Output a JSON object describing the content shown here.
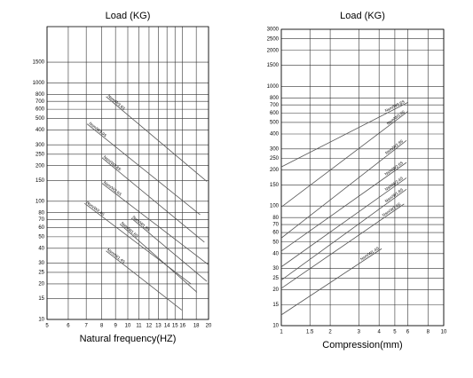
{
  "chart_data": [
    {
      "type": "line",
      "title": "Load (KG)",
      "x_label": "Natural frequency(HZ)",
      "xscale": "log",
      "yscale": "log",
      "grid": true,
      "xlim": [
        5,
        20
      ],
      "xticks": [
        5,
        6,
        7,
        8,
        9,
        10,
        11,
        12,
        13,
        14,
        15,
        16,
        18,
        20
      ],
      "ylim": [
        10,
        3000
      ],
      "yticks": [
        10,
        15,
        20,
        25,
        30,
        40,
        50,
        60,
        70,
        80,
        100,
        150,
        200,
        250,
        300,
        400,
        500,
        600,
        700,
        800,
        1000,
        1500
      ],
      "series": [
        {
          "name": "Nsm/W3.6S",
          "color": "#555555",
          "x": [
            8.3,
            19.7
          ],
          "values": [
            767,
            147
          ]
        },
        {
          "name": "Nsm/W3.9S",
          "color": "#555555",
          "x": [
            7.05,
            18.6
          ],
          "values": [
            451,
            77
          ]
        },
        {
          "name": "Nsm/W2.8S",
          "color": "#555555",
          "x": [
            8.0,
            19.3
          ],
          "values": [
            234,
            45
          ]
        },
        {
          "name": "Nsm/W2.6S",
          "color": "#555555",
          "x": [
            8.0,
            20
          ],
          "values": [
            142,
            29
          ]
        },
        {
          "name": "Nsm/W2.4S",
          "color": "#555555",
          "x": [
            6.9,
            17.2
          ],
          "values": [
            96,
            20
          ]
        },
        {
          "name": "Nsm/W1.8S",
          "color": "#555555",
          "x": [
            10.3,
            19.7
          ],
          "values": [
            72,
            21
          ]
        },
        {
          "name": "Nsm/W1.6S",
          "color": "#555555",
          "x": [
            9.35,
            18.1
          ],
          "values": [
            64,
            17
          ]
        },
        {
          "name": "Nsm/W1.4S",
          "color": "#555555",
          "x": [
            8.3,
            15.9
          ],
          "values": [
            38,
            12
          ]
        }
      ]
    },
    {
      "type": "line",
      "title": "Load (KG)",
      "x_label": "Compression(mm)",
      "xscale": "log",
      "yscale": "log",
      "grid": true,
      "xlim": [
        1,
        10
      ],
      "xticks": [
        1,
        1.5,
        2,
        3,
        4,
        5,
        6,
        8,
        10
      ],
      "ylim": [
        10,
        3000
      ],
      "yticks": [
        10,
        15,
        20,
        25,
        30,
        40,
        50,
        60,
        70,
        80,
        100,
        150,
        200,
        250,
        300,
        400,
        500,
        600,
        700,
        800,
        1000,
        1500,
        2000,
        2500,
        3000
      ],
      "series": [
        {
          "name": "Nsm/W3.6S",
          "color": "#555555",
          "x": [
            1,
            6.04
          ],
          "values": [
            212,
            736
          ]
        },
        {
          "name": "Nsm/W3.9S",
          "color": "#555555",
          "x": [
            1,
            6.04
          ],
          "values": [
            98,
            620
          ]
        },
        {
          "name": "Nsm/W2.8S",
          "color": "#555555",
          "x": [
            1,
            5.9
          ],
          "values": [
            54,
            353
          ]
        },
        {
          "name": "Nsm/W2.6S",
          "color": "#555555",
          "x": [
            1,
            5.9
          ],
          "values": [
            42,
            231
          ]
        },
        {
          "name": "Nsm/W2.4S",
          "color": "#555555",
          "x": [
            1,
            5.9
          ],
          "values": [
            31,
            172
          ]
        },
        {
          "name": "Nsm/W1.8S",
          "color": "#555555",
          "x": [
            1,
            5.9
          ],
          "values": [
            24,
            138
          ]
        },
        {
          "name": "Nsm/W1.6S",
          "color": "#555555",
          "x": [
            1,
            5.7
          ],
          "values": [
            20.5,
            104
          ]
        },
        {
          "name": "Nsm/W1.4S",
          "color": "#555555",
          "x": [
            1,
            4.15
          ],
          "values": [
            12.3,
            44
          ]
        }
      ]
    }
  ]
}
